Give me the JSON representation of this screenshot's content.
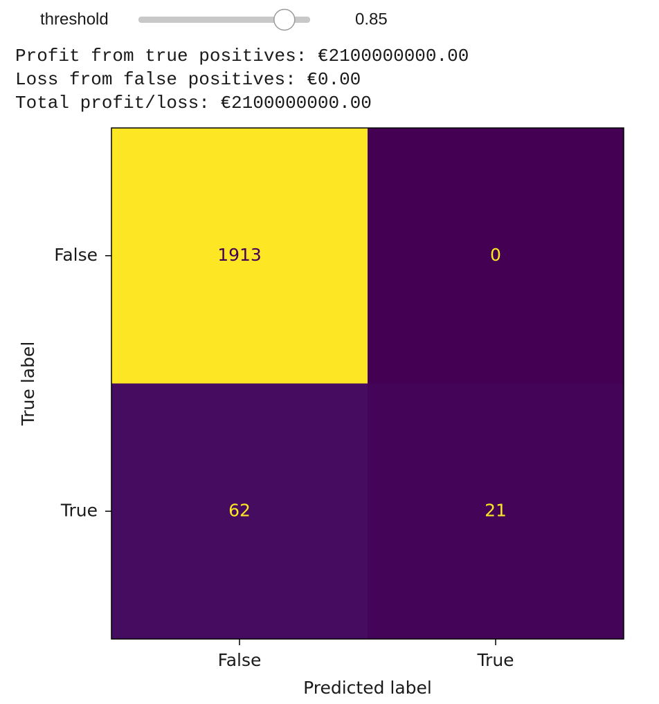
{
  "slider": {
    "label": "threshold",
    "value": 0.85,
    "range": [
      0,
      1
    ]
  },
  "output": [
    "Profit from true positives: €2100000000.00",
    "Loss from false positives: €0.00",
    "Total profit/loss: €2100000000.00"
  ],
  "chart_data": {
    "type": "heatmap",
    "colormap": "viridis",
    "x_label": "Predicted label",
    "y_label": "True label",
    "x_categories": [
      "False",
      "True"
    ],
    "y_categories": [
      "False",
      "True"
    ],
    "values": [
      [
        1913,
        0
      ],
      [
        62,
        21
      ]
    ]
  }
}
